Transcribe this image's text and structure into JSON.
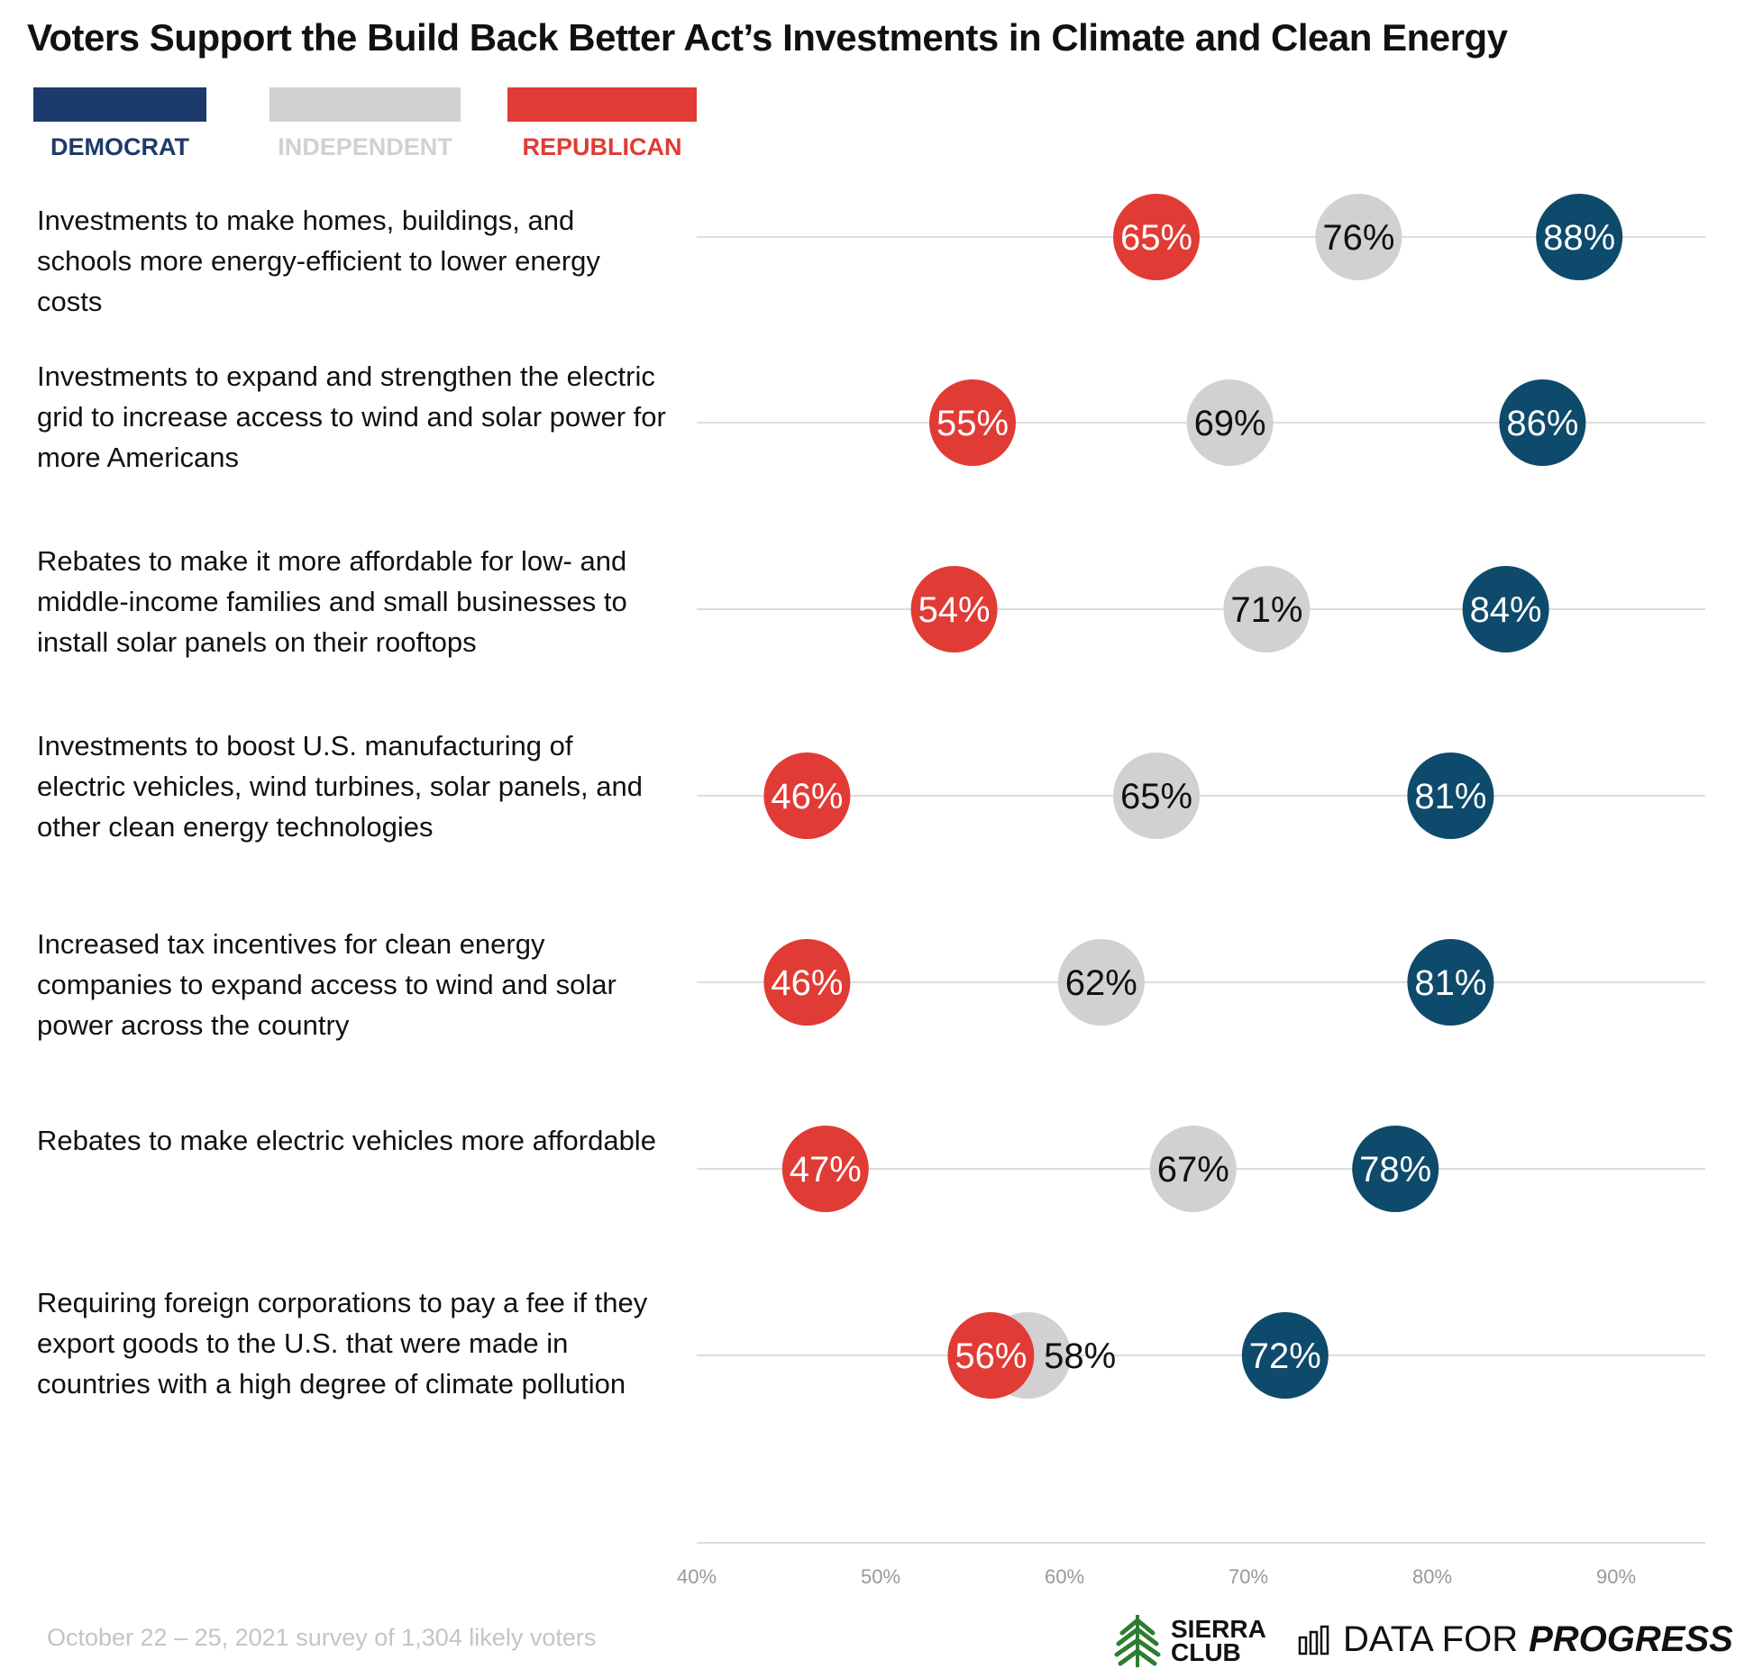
{
  "title": "Voters Support the Build Back Better Act’s Investments in Climate and Clean Energy",
  "legend": [
    {
      "label": "DEMOCRAT",
      "color": "#1c3a6b"
    },
    {
      "label": "INDEPENDENT",
      "color": "#d3d0d3"
    },
    {
      "label": "REPUBLICAN",
      "color": "#e13b35"
    }
  ],
  "colors": {
    "democrat": "#0e4a6b",
    "independent": "#d3d0d3",
    "republican": "#e13b35",
    "gridline": "#dddddd"
  },
  "footnote": "October 22 – 25, 2021 survey of 1,304 likely voters",
  "logos": {
    "sierra_club": [
      "SIERRA",
      "CLUB"
    ],
    "data_for_progress": {
      "light": "DATA FOR",
      "bold": "PROGRESS"
    }
  },
  "chart_data": {
    "type": "scatter",
    "title": "Voters Support the Build Back Better Act’s Investments in Climate and Clean Energy",
    "xlabel": "",
    "ylabel": "",
    "xlim": [
      40,
      95
    ],
    "x_ticks": [
      "40%",
      "50%",
      "60%",
      "70%",
      "80%",
      "90%"
    ],
    "x_tick_values": [
      40,
      50,
      60,
      70,
      80,
      90
    ],
    "legend": [
      "DEMOCRAT",
      "INDEPENDENT",
      "REPUBLICAN"
    ],
    "categories": [
      "Investments to make homes, buildings, and schools more energy-efficient to lower energy costs",
      "Investments to expand and strengthen the electric grid to increase access to wind and solar power for more Americans",
      "Rebates to make it more affordable for low- and middle-income families and small businesses to install solar panels on their rooftops",
      "Investments to boost U.S. manufacturing of electric vehicles, wind turbines, solar panels, and other clean energy technologies",
      "Increased tax incentives for clean energy companies to expand access to wind and solar power across the country",
      "Rebates to make electric vehicles more affordable",
      "Requiring foreign corporations to pay a fee if they export goods to the U.S. that were made in countries with a high degree of climate pollution"
    ],
    "series": [
      {
        "name": "Republican",
        "values": [
          65,
          55,
          54,
          46,
          46,
          47,
          56
        ]
      },
      {
        "name": "Independent",
        "values": [
          76,
          69,
          71,
          65,
          62,
          67,
          58
        ]
      },
      {
        "name": "Democrat",
        "values": [
          88,
          86,
          84,
          81,
          81,
          78,
          72
        ]
      }
    ]
  }
}
